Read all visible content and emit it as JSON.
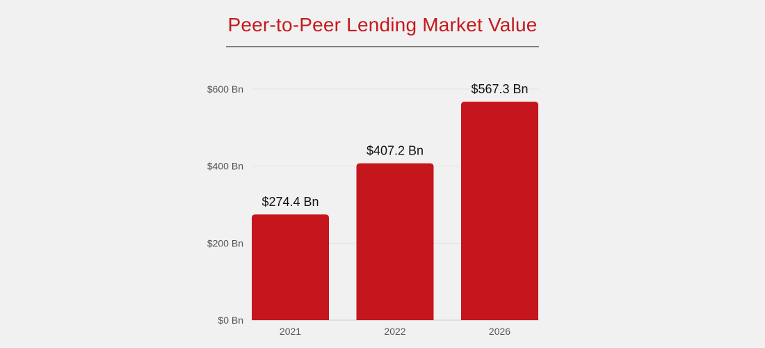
{
  "chart_data": {
    "type": "bar",
    "title": "Peer-to-Peer Lending Market Value",
    "categories": [
      "2021",
      "2022",
      "2026"
    ],
    "values": [
      274.4,
      407.2,
      567.3
    ],
    "data_labels": [
      "$274.4 Bn",
      "$407.2 Bn",
      "$567.3 Bn"
    ],
    "yticks": [
      0,
      200,
      400,
      600
    ],
    "ytick_labels": [
      "$0 Bn",
      "$200 Bn",
      "$400 Bn",
      "$600 Bn"
    ],
    "ylim": [
      0,
      600
    ],
    "grid": true,
    "bar_color": "#c4161c",
    "title_color": "#c41a1e"
  }
}
